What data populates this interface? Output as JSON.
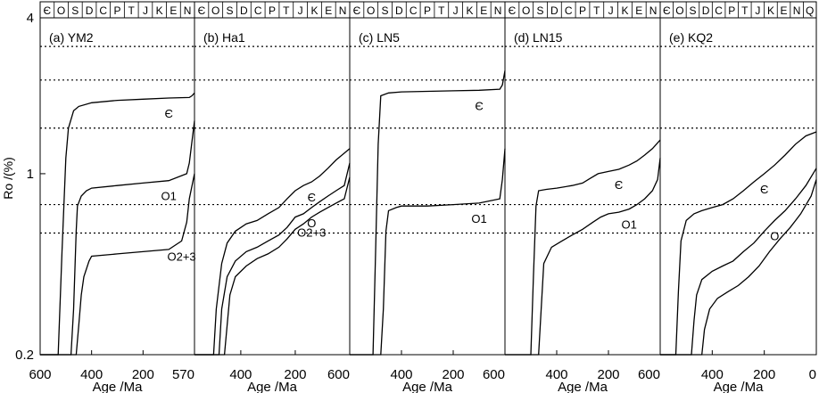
{
  "chart_data": [
    {
      "type": "line",
      "panel_label": "(a) YM2",
      "xlabel": "Age /Ma",
      "ylabel": "Ro /(%)",
      "xlim": [
        600,
        0
      ],
      "ylim": [
        0.2,
        4
      ],
      "y_scale": "log",
      "x_tick_labels": [
        "600",
        "400",
        "200"
      ],
      "y_tick_labels": [
        "4",
        "1",
        "0.2"
      ],
      "y_ticks": [
        4,
        1,
        0.2
      ],
      "period_labels": [
        "Є",
        "O",
        "S",
        "D",
        "C",
        "P",
        "T",
        "J",
        "K",
        "E",
        "N"
      ],
      "dotted_reference_lines": [
        3.1,
        2.3,
        1.5,
        0.76,
        0.59
      ],
      "series": [
        {
          "name": "Є",
          "x": [
            600,
            530,
            515,
            500,
            490,
            470,
            450,
            400,
            300,
            200,
            100,
            20,
            10,
            0
          ],
          "y": [
            0.2,
            0.2,
            0.5,
            1.15,
            1.5,
            1.75,
            1.82,
            1.88,
            1.92,
            1.94,
            1.96,
            1.97,
            2.0,
            2.05
          ]
        },
        {
          "name": "O1",
          "x": [
            600,
            480,
            470,
            460,
            455,
            440,
            420,
            400,
            300,
            200,
            100,
            30,
            20,
            0
          ],
          "y": [
            0.2,
            0.2,
            0.3,
            0.6,
            0.75,
            0.82,
            0.86,
            0.88,
            0.9,
            0.92,
            0.94,
            1.0,
            1.1,
            1.6
          ]
        },
        {
          "name": "O2+3",
          "x": [
            600,
            460,
            450,
            440,
            430,
            410,
            400,
            300,
            200,
            100,
            50,
            30,
            20,
            0
          ],
          "y": [
            0.2,
            0.2,
            0.26,
            0.34,
            0.4,
            0.46,
            0.48,
            0.49,
            0.5,
            0.51,
            0.55,
            0.65,
            0.8,
            1.0
          ]
        }
      ],
      "annotations": [
        "Є",
        "O1",
        "O2+3"
      ]
    },
    {
      "type": "line",
      "panel_label": "(b) Ha1",
      "xlabel": "Age /Ma",
      "xlim": [
        570,
        0
      ],
      "ylim": [
        0.2,
        4
      ],
      "y_scale": "log",
      "x_tick_labels": [
        "570",
        "400",
        "200"
      ],
      "period_labels": [
        "Є",
        "O",
        "S",
        "D",
        "C",
        "P",
        "T",
        "J",
        "K",
        "E",
        "N"
      ],
      "dotted_reference_lines": [
        3.1,
        2.3,
        1.5,
        0.76,
        0.59
      ],
      "series": [
        {
          "name": "Є",
          "x": [
            570,
            500,
            490,
            470,
            450,
            420,
            380,
            340,
            300,
            260,
            230,
            200,
            170,
            140,
            110,
            80,
            50,
            20,
            0
          ],
          "y": [
            0.2,
            0.2,
            0.3,
            0.45,
            0.54,
            0.6,
            0.64,
            0.66,
            0.7,
            0.74,
            0.8,
            0.86,
            0.9,
            0.93,
            0.98,
            1.05,
            1.13,
            1.2,
            1.25
          ]
        },
        {
          "name": "O",
          "x": [
            570,
            480,
            470,
            450,
            420,
            380,
            340,
            300,
            260,
            230,
            200,
            170,
            140,
            110,
            80,
            50,
            20,
            0
          ],
          "y": [
            0.2,
            0.2,
            0.3,
            0.4,
            0.46,
            0.5,
            0.52,
            0.55,
            0.58,
            0.62,
            0.68,
            0.7,
            0.74,
            0.78,
            0.82,
            0.86,
            0.9,
            1.1
          ]
        },
        {
          "name": "O2+3",
          "x": [
            570,
            460,
            450,
            440,
            420,
            380,
            340,
            300,
            260,
            230,
            200,
            170,
            140,
            110,
            80,
            50,
            20,
            0
          ],
          "y": [
            0.2,
            0.2,
            0.26,
            0.34,
            0.4,
            0.44,
            0.47,
            0.49,
            0.52,
            0.56,
            0.61,
            0.64,
            0.68,
            0.71,
            0.74,
            0.77,
            0.8,
            0.97
          ]
        }
      ],
      "annotations": [
        "Є",
        "O",
        "O2+3"
      ]
    },
    {
      "type": "line",
      "panel_label": "(c) LN5",
      "xlabel": "Age /Ma",
      "xlim": [
        600,
        0
      ],
      "ylim": [
        0.2,
        4
      ],
      "y_scale": "log",
      "x_tick_labels": [
        "600",
        "400",
        "200"
      ],
      "period_labels": [
        "Є",
        "O",
        "S",
        "D",
        "C",
        "P",
        "T",
        "J",
        "K",
        "E",
        "N"
      ],
      "dotted_reference_lines": [
        3.1,
        2.3,
        1.5,
        0.76,
        0.59
      ],
      "series": [
        {
          "name": "Є",
          "x": [
            600,
            510,
            500,
            490,
            480,
            450,
            400,
            300,
            200,
            100,
            20,
            10,
            0
          ],
          "y": [
            0.2,
            0.2,
            0.5,
            1.3,
            2.0,
            2.05,
            2.07,
            2.08,
            2.09,
            2.1,
            2.12,
            2.2,
            2.5
          ]
        },
        {
          "name": "O1",
          "x": [
            600,
            480,
            470,
            460,
            450,
            420,
            400,
            300,
            200,
            100,
            20,
            10,
            0
          ],
          "y": [
            0.2,
            0.2,
            0.3,
            0.6,
            0.72,
            0.74,
            0.75,
            0.75,
            0.76,
            0.77,
            0.8,
            0.95,
            1.25
          ]
        }
      ],
      "annotations": [
        "Є",
        "O1"
      ]
    },
    {
      "type": "line",
      "panel_label": "(d) LN15",
      "xlabel": "Age /Ma",
      "xlim": [
        600,
        0
      ],
      "ylim": [
        0.2,
        4
      ],
      "y_scale": "log",
      "x_tick_labels": [
        "600",
        "400",
        "200"
      ],
      "period_labels": [
        "Є",
        "O",
        "S",
        "D",
        "C",
        "P",
        "T",
        "J",
        "K",
        "E",
        "N"
      ],
      "dotted_reference_lines": [
        3.1,
        2.3,
        1.5,
        0.76,
        0.59
      ],
      "series": [
        {
          "name": "Є",
          "x": [
            600,
            500,
            490,
            480,
            470,
            440,
            400,
            340,
            300,
            270,
            240,
            200,
            160,
            120,
            90,
            60,
            30,
            0
          ],
          "y": [
            0.2,
            0.2,
            0.4,
            0.75,
            0.86,
            0.87,
            0.88,
            0.9,
            0.92,
            0.96,
            1.0,
            1.02,
            1.04,
            1.08,
            1.12,
            1.18,
            1.25,
            1.35
          ]
        },
        {
          "name": "O1",
          "x": [
            600,
            470,
            460,
            450,
            420,
            380,
            340,
            300,
            260,
            230,
            200,
            160,
            120,
            90,
            60,
            30,
            10,
            0
          ],
          "y": [
            0.2,
            0.2,
            0.3,
            0.45,
            0.52,
            0.55,
            0.58,
            0.61,
            0.65,
            0.68,
            0.7,
            0.71,
            0.73,
            0.76,
            0.8,
            0.86,
            0.95,
            1.15
          ]
        }
      ],
      "annotations": [
        "Є",
        "O1"
      ]
    },
    {
      "type": "line",
      "panel_label": "(e) KQ2",
      "xlabel": "Age /Ma",
      "xlim": [
        600,
        0
      ],
      "ylim": [
        0.2,
        4
      ],
      "y_scale": "log",
      "x_tick_labels": [
        "600",
        "400",
        "200",
        "0"
      ],
      "period_labels": [
        "Є",
        "O",
        "S",
        "D",
        "C",
        "P",
        "T",
        "J",
        "K",
        "E",
        "N",
        "Q"
      ],
      "dotted_reference_lines": [
        3.1,
        2.3,
        1.5,
        0.76,
        0.59
      ],
      "series": [
        {
          "name": "Є",
          "x": [
            600,
            540,
            530,
            520,
            500,
            470,
            440,
            400,
            360,
            320,
            280,
            240,
            200,
            160,
            120,
            80,
            40,
            0
          ],
          "y": [
            0.2,
            0.2,
            0.35,
            0.55,
            0.66,
            0.7,
            0.72,
            0.74,
            0.76,
            0.8,
            0.86,
            0.93,
            1.0,
            1.08,
            1.18,
            1.3,
            1.4,
            1.45
          ]
        },
        {
          "name": "O",
          "x": [
            600,
            480,
            470,
            460,
            440,
            400,
            360,
            320,
            280,
            240,
            200,
            160,
            120,
            80,
            40,
            0
          ],
          "y": [
            0.2,
            0.2,
            0.27,
            0.34,
            0.39,
            0.42,
            0.44,
            0.46,
            0.5,
            0.54,
            0.6,
            0.66,
            0.72,
            0.8,
            0.9,
            1.05
          ]
        },
        {
          "name": "",
          "x": [
            600,
            440,
            430,
            410,
            380,
            340,
            300,
            260,
            220,
            180,
            140,
            100,
            60,
            20,
            0
          ],
          "y": [
            0.2,
            0.2,
            0.25,
            0.3,
            0.33,
            0.35,
            0.37,
            0.4,
            0.44,
            0.5,
            0.56,
            0.62,
            0.7,
            0.82,
            0.95
          ]
        }
      ],
      "annotations": [
        "Є",
        "O"
      ]
    }
  ]
}
